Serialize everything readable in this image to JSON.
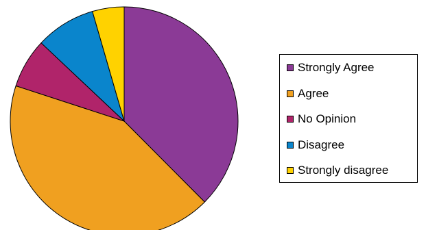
{
  "chart_data": {
    "type": "pie",
    "title": "",
    "start_angle_deg": 0,
    "direction": "clockwise",
    "legend_position": "right",
    "slices": [
      {
        "label": "Strongly Agree",
        "value": 37.5,
        "color": "#8b3a96"
      },
      {
        "label": "Agree",
        "value": 42.5,
        "color": "#f0a020"
      },
      {
        "label": "No Opinion",
        "value": 7.0,
        "color": "#b0246a"
      },
      {
        "label": "Disagree",
        "value": 8.5,
        "color": "#0a85cc"
      },
      {
        "label": "Strongly disagree",
        "value": 4.5,
        "color": "#ffd200"
      }
    ]
  }
}
